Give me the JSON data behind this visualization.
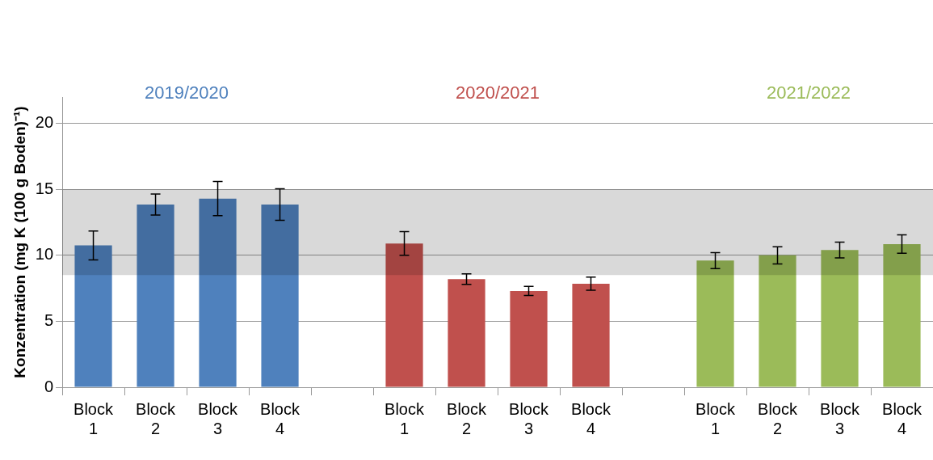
{
  "chart_data": {
    "type": "bar",
    "ylabel": "Konzentration (mg K (100 g Boden)⁻¹)",
    "categories": [
      "Block 1",
      "Block 2",
      "Block 3",
      "Block 4",
      null,
      "Block 1",
      "Block 2",
      "Block 3",
      "Block 4",
      null,
      "Block 1",
      "Block 2",
      "Block 3",
      "Block 4"
    ],
    "series": [
      {
        "name": "2019/2020",
        "color": "#4f81bd",
        "values": [
          10.75,
          13.85,
          14.3,
          13.85,
          null,
          null,
          null,
          null,
          null,
          null,
          null,
          null,
          null,
          null
        ],
        "errors": [
          1.1,
          0.8,
          1.3,
          1.2,
          null,
          null,
          null,
          null,
          null,
          null,
          null,
          null,
          null,
          null
        ]
      },
      {
        "name": "2020/2021",
        "color": "#c0504d",
        "values": [
          null,
          null,
          null,
          null,
          null,
          10.9,
          8.2,
          7.3,
          7.85,
          null,
          null,
          null,
          null,
          null
        ],
        "errors": [
          null,
          null,
          null,
          null,
          null,
          0.9,
          0.4,
          0.35,
          0.5,
          null,
          null,
          null,
          null,
          null
        ]
      },
      {
        "name": "2021/2022",
        "color": "#9bbb59",
        "values": [
          null,
          null,
          null,
          null,
          null,
          null,
          null,
          null,
          null,
          null,
          9.6,
          10.0,
          10.4,
          10.85
        ],
        "errors": [
          null,
          null,
          null,
          null,
          null,
          null,
          null,
          null,
          null,
          null,
          0.6,
          0.65,
          0.6,
          0.7
        ]
      }
    ],
    "ylim": [
      0,
      22
    ],
    "yticks": [
      0,
      5,
      10,
      15,
      20
    ],
    "grid": "y",
    "legend": false,
    "bands": [
      {
        "axis": "y",
        "from": 8.5,
        "to": 15,
        "color": "#d9d9d9"
      }
    ]
  }
}
